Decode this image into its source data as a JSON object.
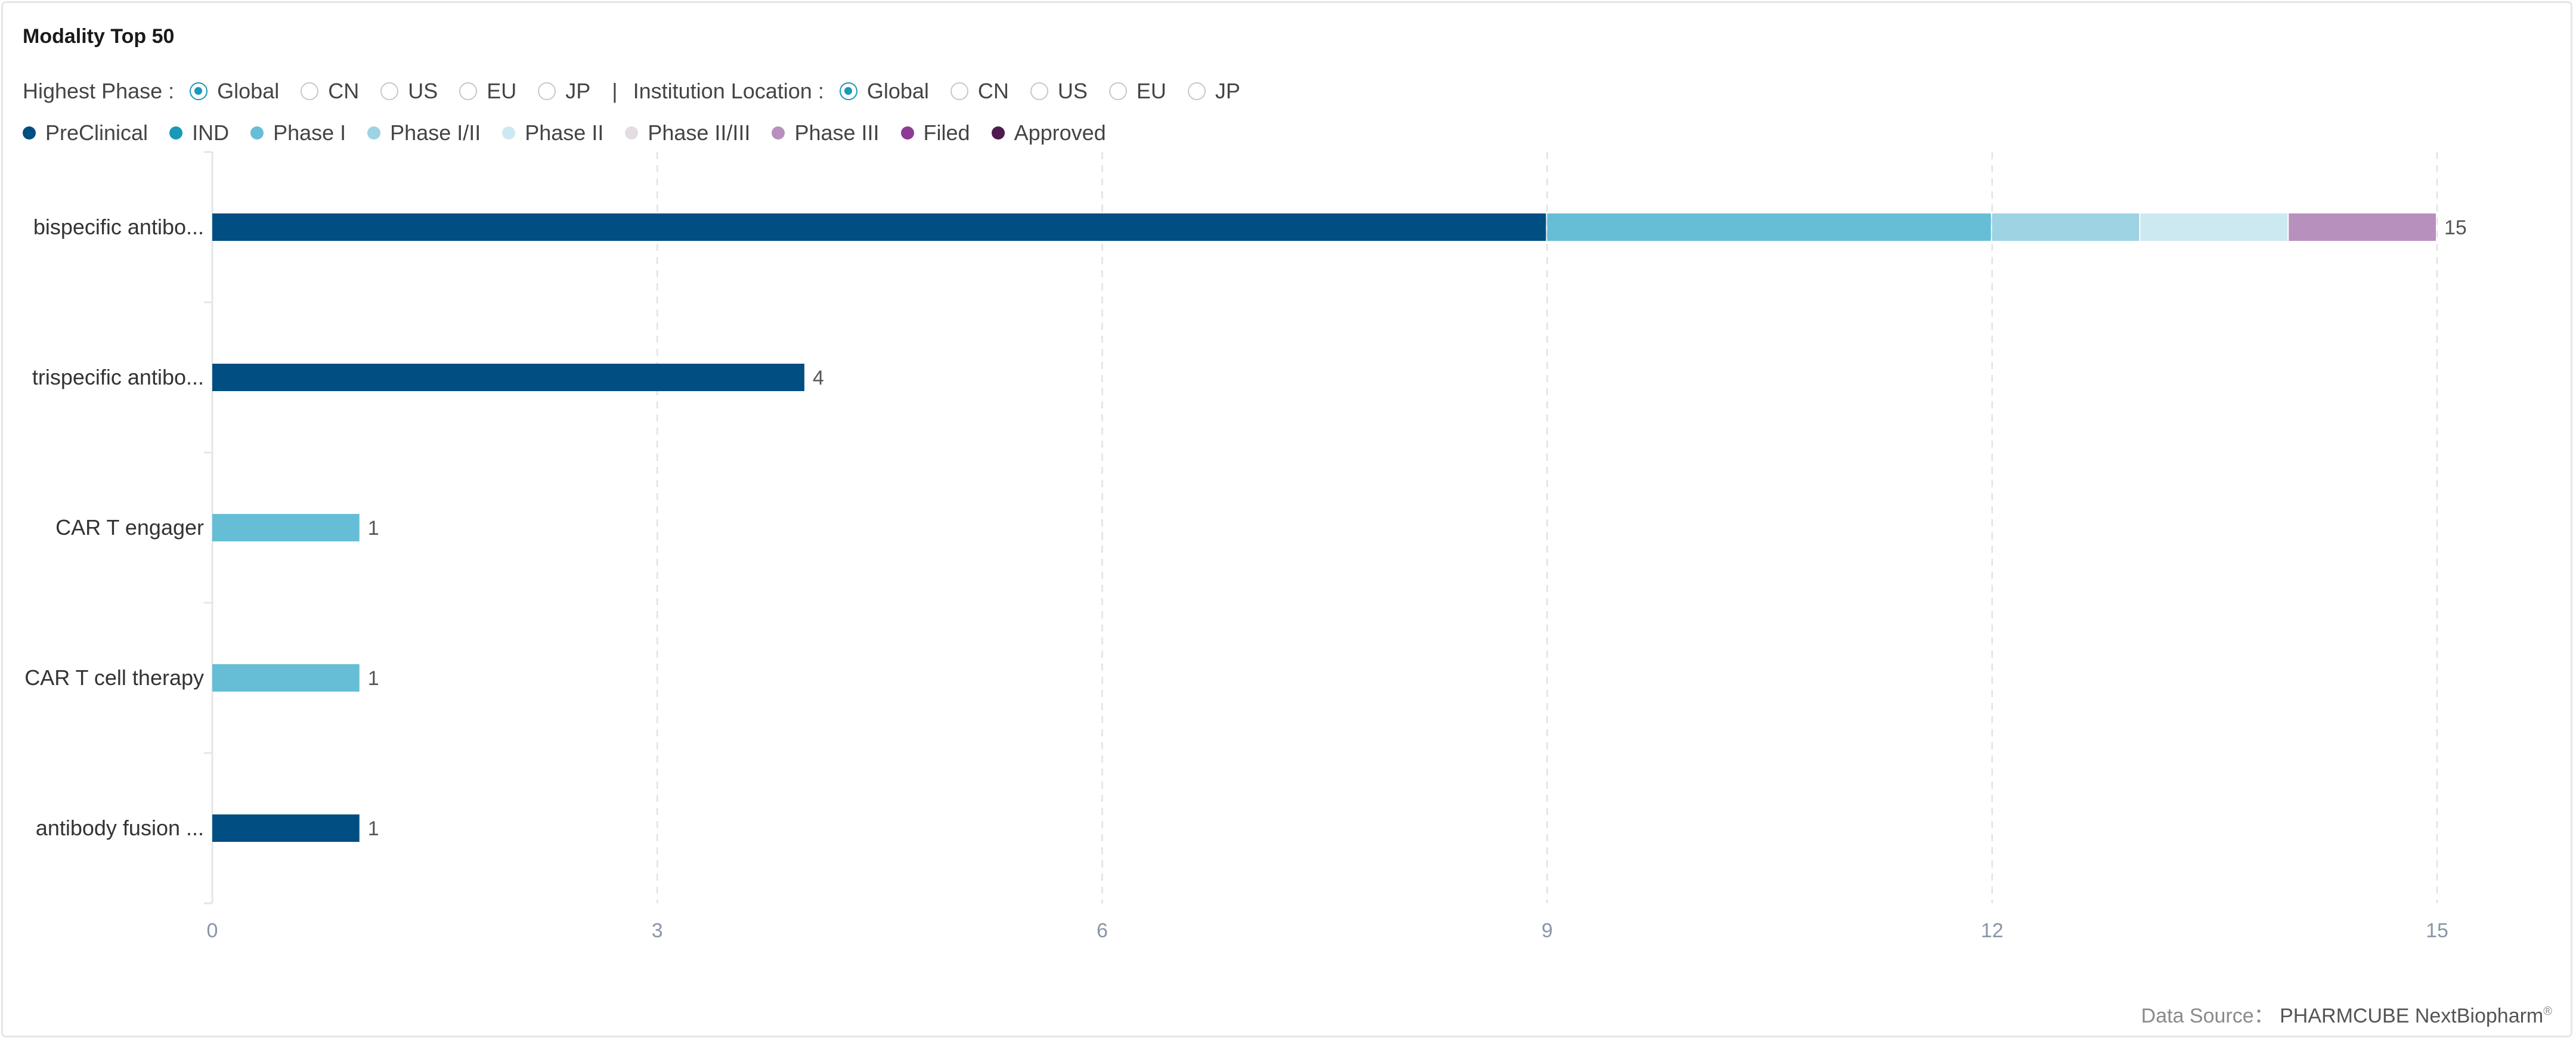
{
  "title": "Modality Top 50",
  "filters": {
    "highest_phase": {
      "label": "Highest Phase :",
      "options": [
        "Global",
        "CN",
        "US",
        "EU",
        "JP"
      ],
      "selected": "Global"
    },
    "separator": "|",
    "institution_location": {
      "label": "Institution Location :",
      "options": [
        "Global",
        "CN",
        "US",
        "EU",
        "JP"
      ],
      "selected": "Global"
    }
  },
  "chart_data": {
    "type": "bar",
    "orientation": "horizontal",
    "stacked": true,
    "categories": [
      "bispecific antibo...",
      "trispecific antibo...",
      "CAR T engager",
      "CAR T cell therapy",
      "antibody fusion ..."
    ],
    "series": [
      {
        "name": "PreClinical",
        "color": "#004e82",
        "values": [
          9,
          4,
          0,
          0,
          1
        ]
      },
      {
        "name": "IND",
        "color": "#1a98b8",
        "values": [
          0,
          0,
          0,
          0,
          0
        ]
      },
      {
        "name": "Phase I",
        "color": "#66bdd6",
        "values": [
          3,
          0,
          1,
          1,
          0
        ]
      },
      {
        "name": "Phase I/II",
        "color": "#9dd3e3",
        "values": [
          1,
          0,
          0,
          0,
          0
        ]
      },
      {
        "name": "Phase II",
        "color": "#cce9f1",
        "values": [
          1,
          0,
          0,
          0,
          0
        ]
      },
      {
        "name": "Phase II/III",
        "color": "#e3dde3",
        "values": [
          0,
          0,
          0,
          0,
          0
        ]
      },
      {
        "name": "Phase III",
        "color": "#b890bd",
        "values": [
          1,
          0,
          0,
          0,
          0
        ]
      },
      {
        "name": "Filed",
        "color": "#8e3b93",
        "values": [
          0,
          0,
          0,
          0,
          0
        ]
      },
      {
        "name": "Approved",
        "color": "#4e1b4f",
        "values": [
          0,
          0,
          0,
          0,
          0
        ]
      }
    ],
    "totals": [
      15,
      4,
      1,
      1,
      1
    ],
    "x_ticks": [
      0,
      3,
      6,
      9,
      12,
      15
    ],
    "xlim": [
      0,
      15
    ],
    "grid": "vertical-dashed",
    "legend_position": "top-left"
  },
  "footer": {
    "source_label": "Data Source：",
    "source_name": "PHARMCUBE NextBiopharm",
    "source_mark": "®"
  }
}
